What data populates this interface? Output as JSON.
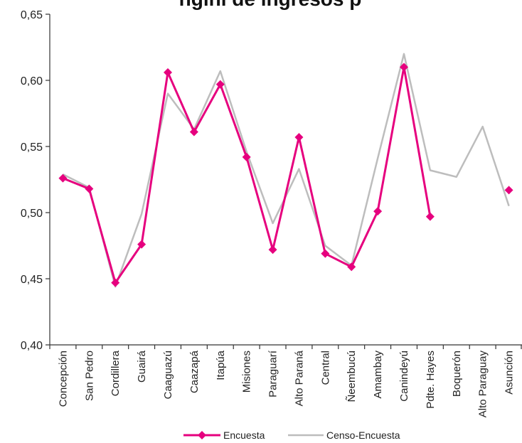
{
  "chart_data": {
    "type": "line",
    "title": "ngini de ingresos p",
    "xlabel": "",
    "ylabel": "",
    "ylim": [
      0.4,
      0.65
    ],
    "yticks": [
      "0,40",
      "0,45",
      "0,50",
      "0,55",
      "0,60",
      "0,65"
    ],
    "ytick_values": [
      0.4,
      0.45,
      0.5,
      0.55,
      0.6,
      0.65
    ],
    "categories": [
      "Concepción",
      "San Pedro",
      "Cordillera",
      "Guairá",
      "Caaguazú",
      "Caazapá",
      "Itapúa",
      "Misiones",
      "Paraguarí",
      "Alto Paraná",
      "Central",
      "Ñeembucú",
      "Amambay",
      "Canindeyú",
      "Pdte. Hayes",
      "Boquerón",
      "Alto Paraguay",
      "Asunción"
    ],
    "grid": false,
    "legend_position": "bottom",
    "series": [
      {
        "name": "Encuesta",
        "color": "#e6007e",
        "marker": "diamond",
        "values": [
          0.526,
          0.518,
          0.447,
          0.476,
          0.606,
          0.561,
          0.597,
          0.542,
          0.472,
          0.557,
          0.469,
          0.459,
          0.501,
          0.61,
          0.497,
          null,
          null,
          0.517
        ]
      },
      {
        "name": "Censo-Encuesta",
        "color": "#bdbdbd",
        "marker": "none",
        "values": [
          0.529,
          0.519,
          0.444,
          0.499,
          0.59,
          0.563,
          0.607,
          0.546,
          0.492,
          0.533,
          0.475,
          0.46,
          0.541,
          0.62,
          0.532,
          0.527,
          0.565,
          0.505
        ]
      }
    ]
  }
}
